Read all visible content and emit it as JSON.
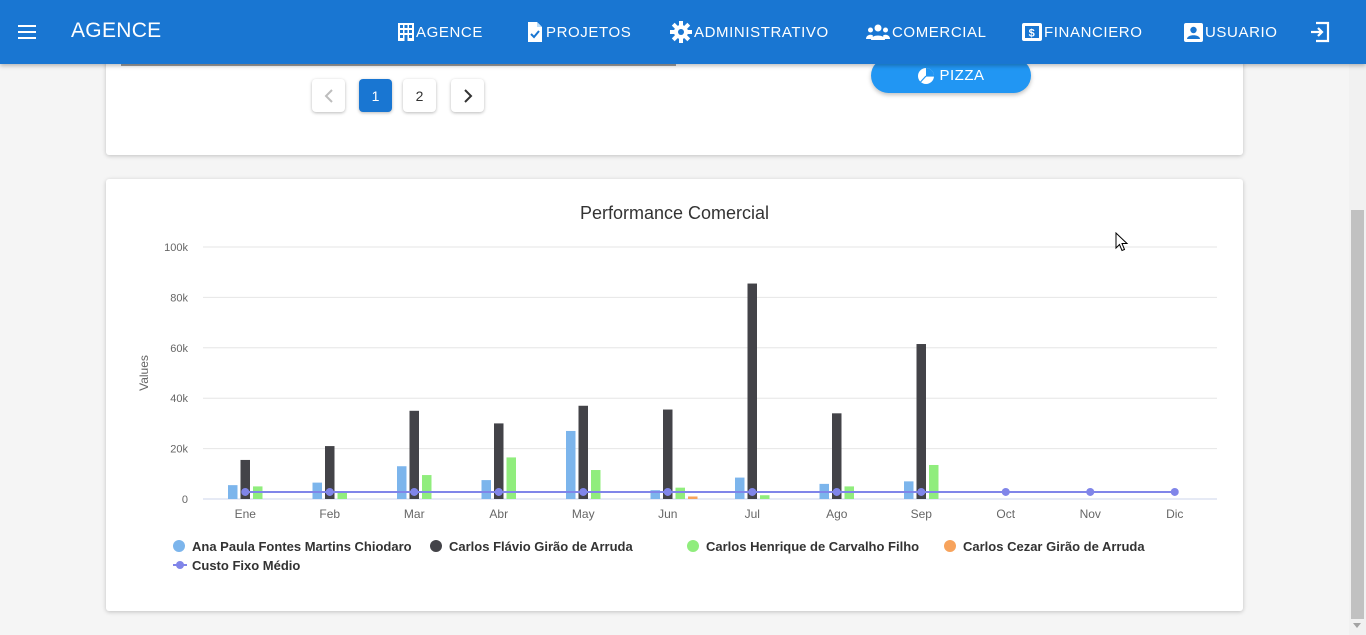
{
  "appbar": {
    "title": "AGENCE",
    "nav": [
      {
        "label": "AGENCE",
        "icon": "building-icon"
      },
      {
        "label": "PROJETOS",
        "icon": "document-check-icon"
      },
      {
        "label": "ADMINISTRATIVO",
        "icon": "gear-icon"
      },
      {
        "label": "COMERCIAL",
        "icon": "people-group-icon"
      },
      {
        "label": "FINANCIERO",
        "icon": "dollar-note-icon"
      },
      {
        "label": "USUARIO",
        "icon": "user-badge-icon"
      }
    ],
    "logout_icon": "logout-icon",
    "menu_icon": "hamburger-menu-icon"
  },
  "pagination": {
    "pages": [
      "1",
      "2"
    ],
    "current": "1",
    "prev_icon": "chevron-left-icon",
    "next_icon": "chevron-right-icon"
  },
  "pizza_button": {
    "label": "PIZZA",
    "icon": "pie-chart-icon"
  },
  "colors": {
    "primary": "#1976d2",
    "pizza": "#2196f3",
    "ana": "#7cb5ec",
    "flavio": "#434348",
    "henrique": "#90ed7d",
    "cezar": "#f7a35c",
    "custo": "#8085e9"
  },
  "chart_data": {
    "type": "bar",
    "title": "Performance Comercial",
    "ylabel": "Values",
    "xlabel": "",
    "ylim": [
      0,
      100000
    ],
    "yticks": [
      {
        "value": 0,
        "label": "0"
      },
      {
        "value": 20000,
        "label": "20k"
      },
      {
        "value": 40000,
        "label": "40k"
      },
      {
        "value": 60000,
        "label": "60k"
      },
      {
        "value": 80000,
        "label": "80k"
      },
      {
        "value": 100000,
        "label": "100k"
      }
    ],
    "categories": [
      "Ene",
      "Feb",
      "Mar",
      "Abr",
      "May",
      "Jun",
      "Jul",
      "Ago",
      "Sep",
      "Oct",
      "Nov",
      "Dic"
    ],
    "series": [
      {
        "name": "Ana Paula Fontes Martins Chiodaro",
        "type": "bar",
        "color": "#7cb5ec",
        "values": [
          5500,
          6500,
          13000,
          7500,
          27000,
          3500,
          8500,
          6000,
          7000,
          null,
          null,
          null
        ]
      },
      {
        "name": "Carlos Flávio Girão de Arruda",
        "type": "bar",
        "color": "#434348",
        "values": [
          15500,
          21000,
          35000,
          30000,
          37000,
          35500,
          85500,
          34000,
          61500,
          null,
          null,
          null
        ]
      },
      {
        "name": "Carlos Henrique de Carvalho Filho",
        "type": "bar",
        "color": "#90ed7d",
        "values": [
          5000,
          2500,
          9500,
          16500,
          11500,
          4500,
          1500,
          5000,
          13500,
          null,
          null,
          null
        ]
      },
      {
        "name": "Carlos Cezar Girão de Arruda",
        "type": "bar",
        "color": "#f7a35c",
        "values": [
          null,
          null,
          null,
          null,
          null,
          1000,
          null,
          null,
          null,
          null,
          null,
          null
        ]
      },
      {
        "name": "Custo Fixo Médio",
        "type": "line",
        "color": "#8085e9",
        "values": [
          2800,
          2800,
          2800,
          2800,
          2800,
          2800,
          2800,
          2800,
          2800,
          2800,
          2800,
          2800
        ]
      }
    ],
    "legend_position": "bottom-left",
    "grid": true
  }
}
